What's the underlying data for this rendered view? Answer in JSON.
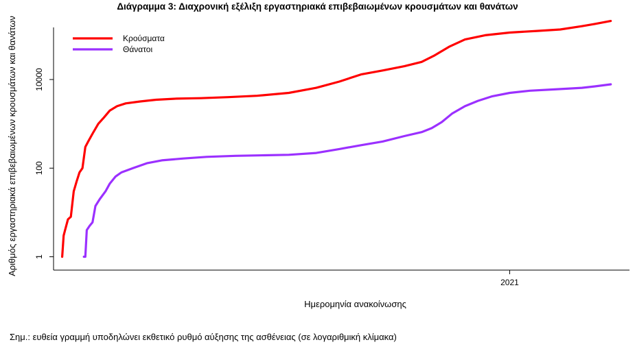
{
  "chart_data": {
    "type": "line",
    "title": "Διάγραμμα 3: Διαχρονική εξέλιξη εργαστηριακά επιβεβαιωμένων κρουσμάτων και θανάτων",
    "xlabel": "Ημερομηνία ανακοίνωσης",
    "ylabel": "Αριθμός εργαστηριακά επιβεβαιωμένων κρουσμάτων και θανάτων",
    "y_scale": "log",
    "ylim": [
      0.5,
      150000
    ],
    "y_ticks": [
      1,
      100,
      10000
    ],
    "y_tick_labels": [
      "1",
      "100",
      "10000"
    ],
    "xlim": [
      "2020-02-20",
      "2021-03-25"
    ],
    "x_ticks": [
      "2021-01-01"
    ],
    "x_tick_labels": [
      "2021"
    ],
    "legend_position": "top-left",
    "grid": false,
    "series": [
      {
        "name": "Κρούσματα",
        "color": "#ff0000",
        "points": [
          [
            "2020-02-26",
            1
          ],
          [
            "2020-02-27",
            3
          ],
          [
            "2020-02-28",
            4
          ],
          [
            "2020-03-01",
            7
          ],
          [
            "2020-03-03",
            8
          ],
          [
            "2020-03-05",
            30
          ],
          [
            "2020-03-07",
            50
          ],
          [
            "2020-03-09",
            80
          ],
          [
            "2020-03-11",
            100
          ],
          [
            "2020-03-13",
            300
          ],
          [
            "2020-03-15",
            400
          ],
          [
            "2020-03-18",
            600
          ],
          [
            "2020-03-22",
            1000
          ],
          [
            "2020-03-26",
            1400
          ],
          [
            "2020-03-30",
            2000
          ],
          [
            "2020-04-04",
            2500
          ],
          [
            "2020-04-10",
            2900
          ],
          [
            "2020-04-20",
            3200
          ],
          [
            "2020-05-01",
            3500
          ],
          [
            "2020-05-15",
            3700
          ],
          [
            "2020-06-01",
            3800
          ],
          [
            "2020-06-20",
            4000
          ],
          [
            "2020-07-10",
            4300
          ],
          [
            "2020-08-01",
            5000
          ],
          [
            "2020-08-20",
            6500
          ],
          [
            "2020-09-05",
            9000
          ],
          [
            "2020-09-20",
            13000
          ],
          [
            "2020-10-05",
            16000
          ],
          [
            "2020-10-20",
            20000
          ],
          [
            "2020-11-01",
            25000
          ],
          [
            "2020-11-10",
            35000
          ],
          [
            "2020-11-20",
            55000
          ],
          [
            "2020-12-01",
            80000
          ],
          [
            "2020-12-15",
            100000
          ],
          [
            "2021-01-01",
            115000
          ],
          [
            "2021-01-20",
            125000
          ],
          [
            "2021-02-05",
            135000
          ],
          [
            "2021-02-20",
            160000
          ],
          [
            "2021-03-01",
            180000
          ],
          [
            "2021-03-12",
            210000
          ]
        ]
      },
      {
        "name": "Θάνατοι",
        "color": "#9b30ff",
        "points": [
          [
            "2020-03-12",
            1
          ],
          [
            "2020-03-13",
            1
          ],
          [
            "2020-03-14",
            4
          ],
          [
            "2020-03-16",
            5
          ],
          [
            "2020-03-18",
            6
          ],
          [
            "2020-03-20",
            14
          ],
          [
            "2020-03-23",
            20
          ],
          [
            "2020-03-27",
            30
          ],
          [
            "2020-03-30",
            45
          ],
          [
            "2020-04-03",
            65
          ],
          [
            "2020-04-07",
            80
          ],
          [
            "2020-04-15",
            100
          ],
          [
            "2020-04-25",
            130
          ],
          [
            "2020-05-05",
            150
          ],
          [
            "2020-05-20",
            165
          ],
          [
            "2020-06-05",
            180
          ],
          [
            "2020-06-25",
            190
          ],
          [
            "2020-07-15",
            195
          ],
          [
            "2020-08-01",
            200
          ],
          [
            "2020-08-20",
            220
          ],
          [
            "2020-09-05",
            270
          ],
          [
            "2020-09-20",
            330
          ],
          [
            "2020-10-05",
            400
          ],
          [
            "2020-10-20",
            530
          ],
          [
            "2020-11-01",
            650
          ],
          [
            "2020-11-08",
            800
          ],
          [
            "2020-11-15",
            1100
          ],
          [
            "2020-11-22",
            1700
          ],
          [
            "2020-12-01",
            2500
          ],
          [
            "2020-12-10",
            3300
          ],
          [
            "2020-12-20",
            4200
          ],
          [
            "2021-01-01",
            5000
          ],
          [
            "2021-01-15",
            5600
          ],
          [
            "2021-02-01",
            6000
          ],
          [
            "2021-02-20",
            6500
          ],
          [
            "2021-03-01",
            7000
          ],
          [
            "2021-03-12",
            7800
          ]
        ]
      }
    ]
  },
  "footnote": "Σημ.: ευθεία γραμμή υποδηλώνει εκθετικό ρυθμό αύξησης της ασθένειας (σε λογαριθμική κλίμακα)"
}
